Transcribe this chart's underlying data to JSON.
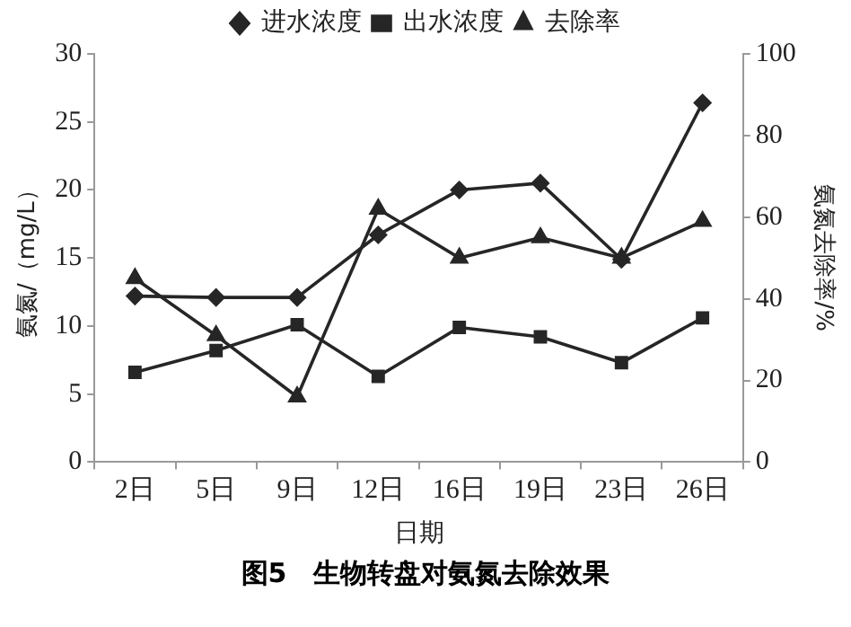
{
  "chart_data": {
    "type": "line",
    "title": "图5　生物转盘对氨氮去除效果",
    "xlabel": "日期",
    "ylabel": "氨氮/（mg/L）",
    "y2label": "氨氮去除率/%",
    "categories": [
      "2日",
      "5日",
      "9日",
      "12日",
      "16日",
      "19日",
      "23日",
      "26日"
    ],
    "series": [
      {
        "name": "进水浓度",
        "color": "#262626",
        "marker": "diamond",
        "values": [
          12.2,
          12.1,
          12.1,
          16.7,
          20.0,
          20.5,
          14.9,
          26.4
        ]
      },
      {
        "name": "出水浓度",
        "color": "#262626",
        "marker": "square",
        "values": [
          6.6,
          8.2,
          10.1,
          6.3,
          9.9,
          9.2,
          7.3,
          10.6
        ]
      },
      {
        "name": "去除率",
        "color": "#262626",
        "marker": "triangle",
        "axis": "y2",
        "values": [
          45,
          31,
          16,
          62,
          50,
          55,
          50,
          59
        ]
      }
    ],
    "ylim": [
      0,
      30
    ],
    "yticks": [
      0,
      5,
      10,
      15,
      20,
      25,
      30
    ],
    "y2lim": [
      0,
      100
    ],
    "y2ticks": [
      0,
      20,
      40,
      60,
      80,
      100
    ],
    "grid": false,
    "legend": "top",
    "line_style": "solid"
  }
}
